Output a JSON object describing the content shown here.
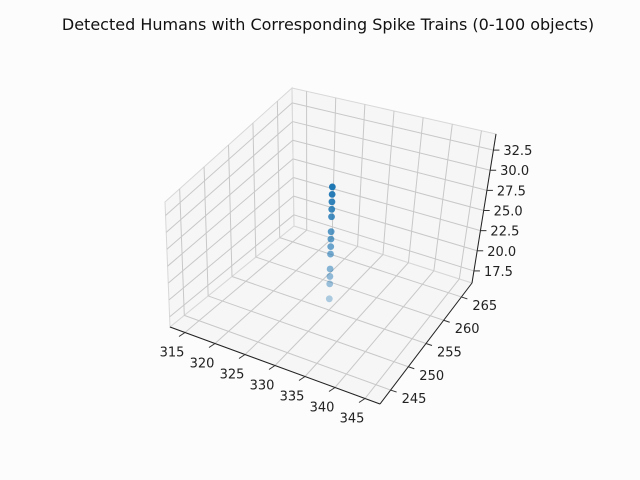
{
  "chart_data": {
    "type": "scatter",
    "projection": "3d",
    "title": "Detected Humans with Corresponding Spike Trains (0-100 objects)",
    "xlabel": "",
    "ylabel": "",
    "zlabel": "",
    "x_ticks": [
      "315",
      "320",
      "325",
      "330",
      "335",
      "340",
      "345"
    ],
    "y_ticks": [
      "245",
      "250",
      "255",
      "260",
      "265"
    ],
    "z_ticks": [
      "17.5",
      "20.0",
      "22.5",
      "25.0",
      "27.5",
      "30.0",
      "32.5"
    ],
    "xlim": [
      312.5,
      347.5
    ],
    "ylim": [
      242,
      268
    ],
    "zlim": [
      16,
      34.5
    ],
    "grid": true,
    "color": "#1f77b4",
    "points": [
      {
        "x": 330,
        "y": 255,
        "z": 17.5
      },
      {
        "x": 330,
        "y": 255,
        "z": 19.5
      },
      {
        "x": 330,
        "y": 255,
        "z": 20.5
      },
      {
        "x": 330,
        "y": 255,
        "z": 21.5
      },
      {
        "x": 330,
        "y": 255,
        "z": 23.5
      },
      {
        "x": 330,
        "y": 255,
        "z": 24.5
      },
      {
        "x": 330,
        "y": 255,
        "z": 25.5
      },
      {
        "x": 330,
        "y": 255,
        "z": 26.5
      },
      {
        "x": 330,
        "y": 255,
        "z": 28.5
      },
      {
        "x": 330,
        "y": 255,
        "z": 29.5
      },
      {
        "x": 330,
        "y": 255,
        "z": 30.5
      },
      {
        "x": 330,
        "y": 255,
        "z": 31.5
      },
      {
        "x": 330,
        "y": 255,
        "z": 32.5
      }
    ]
  }
}
